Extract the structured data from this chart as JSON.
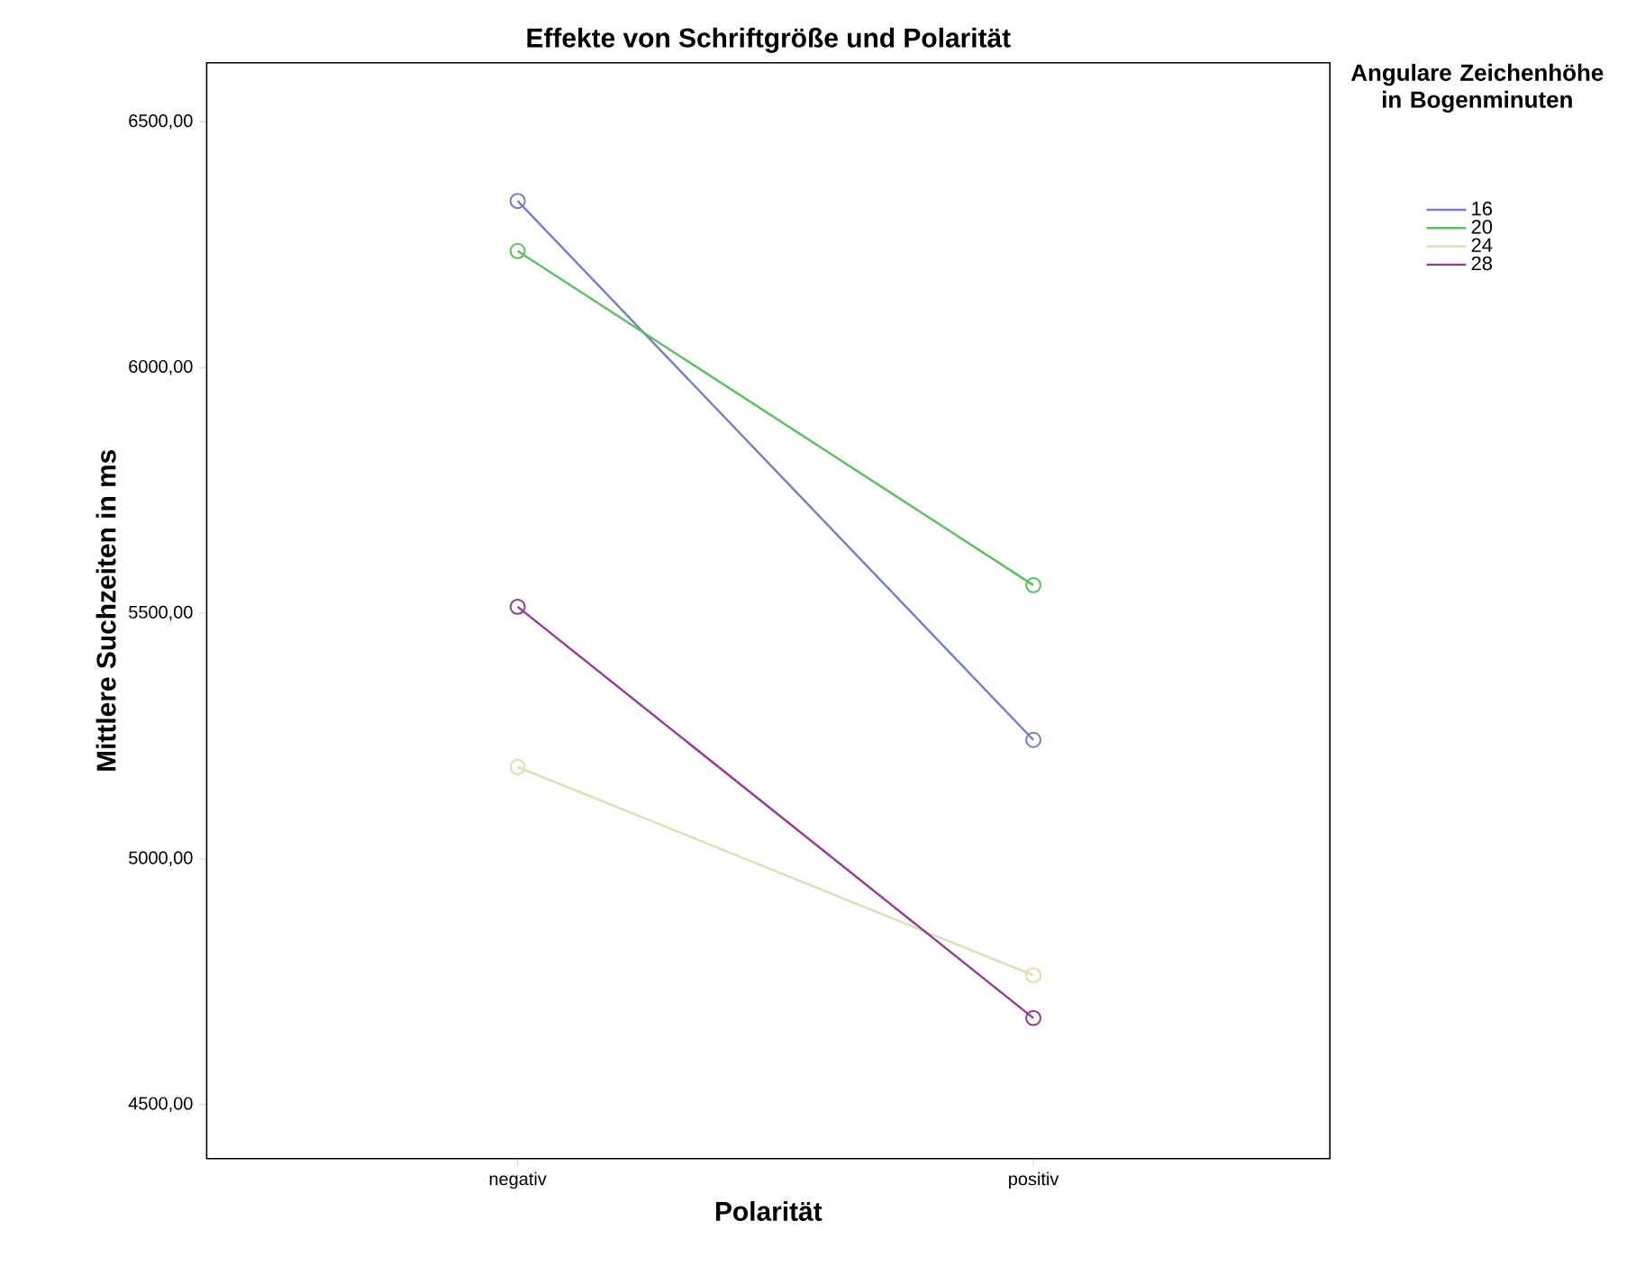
{
  "chart_data": {
    "type": "line",
    "title": "Effekte von Schriftgröße und Polarität",
    "xlabel": "Polarität",
    "ylabel": "Mittlere Suchzeiten in ms",
    "legend_title": "Angulare Zeichenhöhe in Bogenminuten",
    "categories": [
      "negativ",
      "positiv"
    ],
    "series": [
      {
        "name": "16",
        "color": "#6f7fc8",
        "values": [
          6339,
          5242
        ]
      },
      {
        "name": "20",
        "color": "#57c45a",
        "values": [
          6237,
          5557
        ]
      },
      {
        "name": "24",
        "color": "#e0dcb0",
        "values": [
          5187,
          4763
        ]
      },
      {
        "name": "28",
        "color": "#953a98",
        "values": [
          5513,
          4676
        ]
      }
    ],
    "ylim": [
      4390,
      6620
    ],
    "yticks": [
      {
        "value": 4500,
        "label": "4500,00"
      },
      {
        "value": 5000,
        "label": "5000,00"
      },
      {
        "value": 5500,
        "label": "5500,00"
      },
      {
        "value": 6000,
        "label": "6000,00"
      },
      {
        "value": 6500,
        "label": "6500,00"
      }
    ],
    "marker": "circle",
    "legend": "top right",
    "grid": false
  }
}
